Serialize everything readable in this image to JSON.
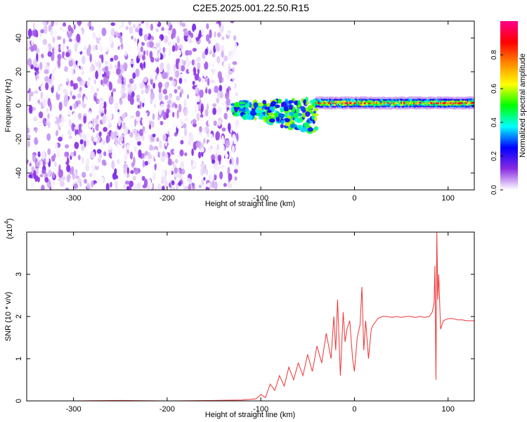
{
  "title": "C2E5.2025.001.22.50.R15",
  "chart_data": [
    {
      "type": "heatmap",
      "xlabel": "Height of straight line (km)",
      "ylabel": "Frequency (Hz)",
      "xlim": [
        -350,
        128
      ],
      "ylim": [
        -50,
        50
      ],
      "xticks": [
        -300,
        -200,
        -100,
        0,
        100
      ],
      "yticks": [
        -40,
        -20,
        0,
        20,
        40
      ],
      "colorbar": {
        "label": "Normalized spectral amplitude",
        "range": [
          0,
          1
        ],
        "ticks": [
          "0.0",
          "0.2",
          "0.4",
          "0.6",
          "0.8"
        ],
        "tick_values": [
          0,
          0.2,
          0.4,
          0.6,
          0.8
        ],
        "colormap": [
          "#ffffff",
          "#8a2be2",
          "#0000ff",
          "#00ffff",
          "#00ff00",
          "#ffff00",
          "#ff8800",
          "#ff0000",
          "#ff0088"
        ]
      },
      "regions": [
        {
          "x_range": [
            -350,
            -125
          ],
          "f_range": [
            -50,
            50
          ],
          "amplitude_range": [
            0.0,
            0.15
          ],
          "description_key": "noise"
        },
        {
          "x_range": [
            -130,
            -40
          ],
          "f_center": 0,
          "f_halfwidth": 8,
          "amplitude_range": [
            0.2,
            0.6
          ]
        },
        {
          "x_range": [
            -40,
            128
          ],
          "f_center": 1.5,
          "f_halfwidth": 3,
          "amplitude_range": [
            0.4,
            1.0
          ]
        }
      ]
    },
    {
      "type": "line",
      "xlabel": "Height of straight line (km)",
      "ylabel": "SNR (10 * v/v)",
      "yscale_label": "(x10",
      "yscale_exp": "4",
      "xlim": [
        -350,
        128
      ],
      "ylim": [
        0,
        4
      ],
      "xticks": [
        -300,
        -200,
        -100,
        0,
        100
      ],
      "yticks": [
        0,
        1,
        2,
        3
      ],
      "color": "#ee3333",
      "series": [
        {
          "x": [
            -350,
            -300,
            -250,
            -200,
            -150,
            -120,
            -105,
            -100,
            -95,
            -90,
            -85,
            -80,
            -75,
            -70,
            -65,
            -60,
            -55,
            -50,
            -45,
            -40,
            -35,
            -30,
            -25,
            -22,
            -20,
            -18,
            -15,
            -12,
            -10,
            -8,
            -5,
            -2,
            0,
            3,
            6,
            8,
            10,
            12,
            15,
            18,
            20,
            25,
            30,
            35,
            40,
            45,
            50,
            55,
            60,
            65,
            70,
            75,
            80,
            83,
            85,
            86,
            87,
            88,
            89,
            90,
            92,
            95,
            100,
            105,
            110,
            115,
            120,
            128
          ],
          "values": [
            0.0,
            0.0,
            0.01,
            0.0,
            0.01,
            0.02,
            0.05,
            0.15,
            0.08,
            0.4,
            0.25,
            0.6,
            0.35,
            0.8,
            0.5,
            0.9,
            0.6,
            1.1,
            0.7,
            1.3,
            0.9,
            1.6,
            1.0,
            2.0,
            1.2,
            2.4,
            0.6,
            2.1,
            1.4,
            1.7,
            1.9,
            1.0,
            0.7,
            1.5,
            1.8,
            2.7,
            1.2,
            1.9,
            1.0,
            1.7,
            1.8,
            1.95,
            2.0,
            2.0,
            1.98,
            2.0,
            1.98,
            2.0,
            2.0,
            1.98,
            2.0,
            1.98,
            2.0,
            2.1,
            2.3,
            3.2,
            0.5,
            4.0,
            2.4,
            3.0,
            1.7,
            1.9,
            1.95,
            1.95,
            1.92,
            1.92,
            1.9,
            1.9
          ]
        }
      ]
    }
  ]
}
